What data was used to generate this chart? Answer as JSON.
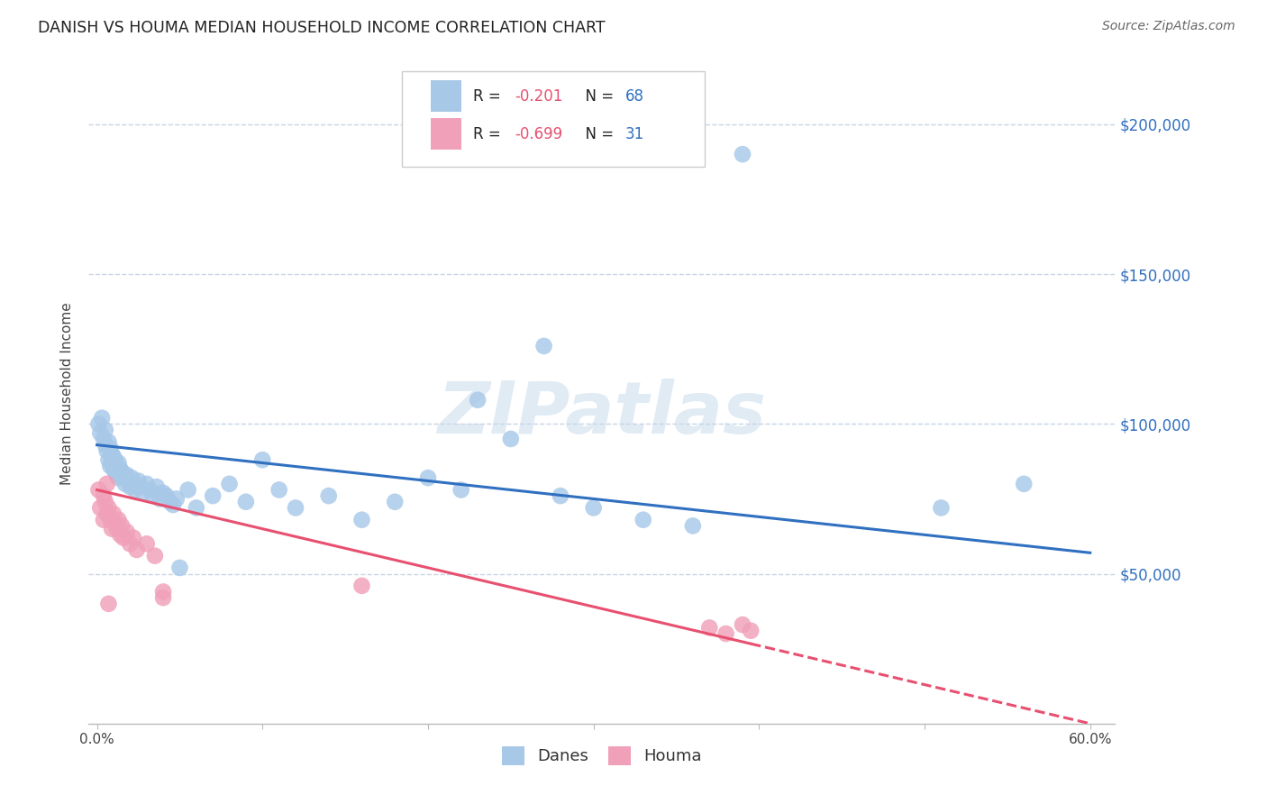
{
  "title": "DANISH VS HOUMA MEDIAN HOUSEHOLD INCOME CORRELATION CHART",
  "source": "Source: ZipAtlas.com",
  "ylabel": "Median Household Income",
  "xlabel_ticks": [
    "0.0%",
    "",
    "",
    "",
    "",
    "",
    "60.0%"
  ],
  "xlabel_vals": [
    0.0,
    0.1,
    0.2,
    0.3,
    0.4,
    0.5,
    0.6
  ],
  "ytick_labels": [
    "$50,000",
    "$100,000",
    "$150,000",
    "$200,000"
  ],
  "ytick_vals": [
    50000,
    100000,
    150000,
    200000
  ],
  "xlim": [
    -0.005,
    0.615
  ],
  "ylim": [
    0,
    220000
  ],
  "danes_color": "#a8c8e8",
  "houma_color": "#f0a0b8",
  "danes_line_color": "#3070c0",
  "houma_line_color": "#e85070",
  "danes_line_slope": -60000,
  "danes_line_intercept": 93000,
  "houma_line_slope": -130000,
  "houma_line_intercept": 78000,
  "background_color": "#ffffff",
  "grid_color": "#c8d4e4",
  "watermark": "ZIPatlas",
  "danes_x": [
    0.001,
    0.002,
    0.003,
    0.004,
    0.005,
    0.005,
    0.006,
    0.007,
    0.007,
    0.008,
    0.008,
    0.009,
    0.009,
    0.01,
    0.01,
    0.011,
    0.011,
    0.012,
    0.012,
    0.013,
    0.013,
    0.014,
    0.015,
    0.016,
    0.017,
    0.018,
    0.019,
    0.02,
    0.021,
    0.022,
    0.023,
    0.025,
    0.026,
    0.028,
    0.03,
    0.032,
    0.034,
    0.036,
    0.038,
    0.04,
    0.042,
    0.044,
    0.046,
    0.048,
    0.05,
    0.055,
    0.06,
    0.07,
    0.08,
    0.09,
    0.1,
    0.11,
    0.12,
    0.14,
    0.16,
    0.18,
    0.2,
    0.22,
    0.25,
    0.28,
    0.3,
    0.33,
    0.36,
    0.39,
    0.23,
    0.27,
    0.51,
    0.56
  ],
  "danes_y": [
    100000,
    97000,
    102000,
    95000,
    93000,
    98000,
    91000,
    94000,
    88000,
    92000,
    86000,
    90000,
    87000,
    89000,
    85000,
    88000,
    84000,
    86000,
    83000,
    87000,
    82000,
    85000,
    84000,
    82000,
    80000,
    83000,
    81000,
    79000,
    82000,
    80000,
    78000,
    81000,
    79000,
    77000,
    80000,
    78000,
    76000,
    79000,
    75000,
    77000,
    76000,
    74000,
    73000,
    75000,
    52000,
    78000,
    72000,
    76000,
    80000,
    74000,
    88000,
    78000,
    72000,
    76000,
    68000,
    74000,
    82000,
    78000,
    95000,
    76000,
    72000,
    68000,
    66000,
    190000,
    108000,
    126000,
    72000,
    80000
  ],
  "houma_x": [
    0.001,
    0.002,
    0.004,
    0.004,
    0.005,
    0.006,
    0.007,
    0.008,
    0.009,
    0.01,
    0.011,
    0.012,
    0.013,
    0.014,
    0.015,
    0.016,
    0.018,
    0.02,
    0.022,
    0.024,
    0.03,
    0.035,
    0.04,
    0.16,
    0.37,
    0.38,
    0.39,
    0.395,
    0.04,
    0.006,
    0.007
  ],
  "houma_y": [
    78000,
    72000,
    76000,
    68000,
    74000,
    70000,
    72000,
    68000,
    65000,
    70000,
    67000,
    65000,
    68000,
    63000,
    66000,
    62000,
    64000,
    60000,
    62000,
    58000,
    60000,
    56000,
    44000,
    46000,
    32000,
    30000,
    33000,
    31000,
    42000,
    80000,
    40000
  ]
}
